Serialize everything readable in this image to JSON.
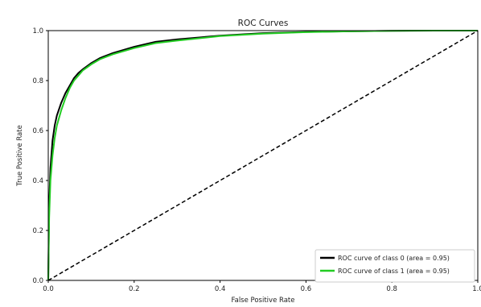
{
  "chart_data": {
    "type": "line",
    "title": "ROC Curves",
    "xlabel": "False Positive Rate",
    "ylabel": "True Positive Rate",
    "xlim": [
      0.0,
      1.0
    ],
    "ylim": [
      0.0,
      1.0
    ],
    "xticks": [
      "0.0",
      "0.2",
      "0.4",
      "0.6",
      "0.8",
      "1.0"
    ],
    "yticks": [
      "0.0",
      "0.2",
      "0.4",
      "0.6",
      "0.8",
      "1.0"
    ],
    "grid": false,
    "legend_position": "lower-right",
    "series": [
      {
        "name": "ROC curve of class 0 (area = 0.95)",
        "color": "#000000",
        "style": "solid",
        "x": [
          0.0,
          0.002,
          0.005,
          0.01,
          0.015,
          0.02,
          0.03,
          0.04,
          0.05,
          0.06,
          0.07,
          0.08,
          0.1,
          0.12,
          0.15,
          0.2,
          0.25,
          0.3,
          0.4,
          0.5,
          0.6,
          0.7,
          0.8,
          0.9,
          1.0
        ],
        "y": [
          0.0,
          0.3,
          0.45,
          0.56,
          0.62,
          0.66,
          0.71,
          0.75,
          0.78,
          0.81,
          0.83,
          0.845,
          0.87,
          0.89,
          0.91,
          0.935,
          0.955,
          0.965,
          0.98,
          0.99,
          0.995,
          0.997,
          0.999,
          1.0,
          1.0
        ]
      },
      {
        "name": "ROC curve of class 1 (area = 0.95)",
        "color": "#22cc22",
        "style": "solid",
        "x": [
          0.0,
          0.002,
          0.005,
          0.01,
          0.015,
          0.02,
          0.03,
          0.04,
          0.05,
          0.06,
          0.07,
          0.08,
          0.1,
          0.12,
          0.15,
          0.2,
          0.25,
          0.3,
          0.4,
          0.5,
          0.6,
          0.7,
          0.8,
          0.9,
          1.0
        ],
        "y": [
          0.0,
          0.25,
          0.4,
          0.5,
          0.57,
          0.62,
          0.68,
          0.73,
          0.77,
          0.8,
          0.82,
          0.84,
          0.865,
          0.885,
          0.905,
          0.93,
          0.95,
          0.96,
          0.978,
          0.988,
          0.994,
          0.997,
          0.999,
          1.0,
          1.0
        ]
      },
      {
        "name": "",
        "color": "#000000",
        "style": "dashed",
        "x": [
          0.0,
          1.0
        ],
        "y": [
          0.0,
          1.0
        ]
      }
    ]
  }
}
